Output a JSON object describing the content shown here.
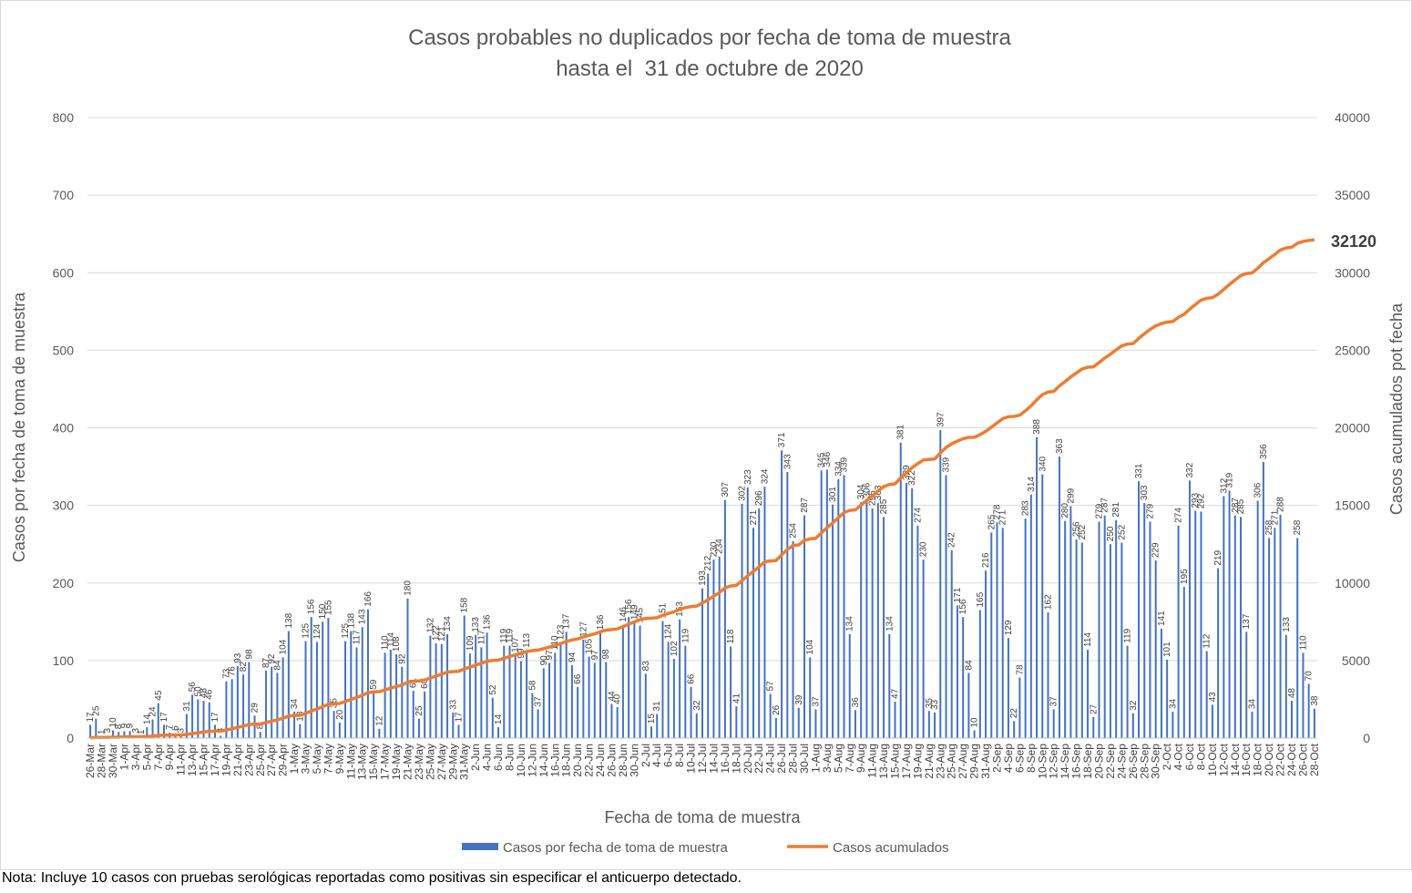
{
  "chart_data": {
    "type": "bar",
    "title": "Casos probables no duplicados por fecha de toma de muestra",
    "subtitle": "hasta el  31 de octubre de 2020",
    "xlabel": "Fecha de toma de muestra",
    "ylabel": "Casos por fecha de toma de muestra",
    "y2label": "Casos acumulados pot fecha",
    "ylim": [
      0,
      800
    ],
    "y2lim": [
      0,
      40000
    ],
    "yticks": [
      0,
      100,
      200,
      300,
      400,
      500,
      600,
      700,
      800
    ],
    "y2ticks": [
      0,
      5000,
      10000,
      15000,
      20000,
      25000,
      30000,
      35000,
      40000
    ],
    "grid": true,
    "legend_position": "bottom",
    "start_date": "2020-03-26",
    "end_date": "2020-10-31",
    "x_tick_labels": [
      "26-Mar",
      "28-Mar",
      "30-Mar",
      "1-Apr",
      "3-Apr",
      "5-Apr",
      "7-Apr",
      "9-Apr",
      "11-Apr",
      "13-Apr",
      "15-Apr",
      "17-Apr",
      "19-Apr",
      "21-Apr",
      "23-Apr",
      "25-Apr",
      "27-Apr",
      "29-Apr",
      "1-May",
      "3-May",
      "5-May",
      "7-May",
      "9-May",
      "11-May",
      "13-May",
      "15-May",
      "17-May",
      "19-May",
      "21-May",
      "23-May",
      "25-May",
      "27-May",
      "29-May",
      "31-May",
      "2-Jun",
      "4-Jun",
      "6-Jun",
      "8-Jun",
      "10-Jun",
      "12-Jun",
      "14-Jun",
      "16-Jun",
      "18-Jun",
      "20-Jun",
      "22-Jun",
      "24-Jun",
      "26-Jun",
      "28-Jun",
      "30-Jun",
      "2-Jul",
      "4-Jul",
      "6-Jul",
      "8-Jul",
      "10-Jul",
      "12-Jul",
      "14-Jul",
      "16-Jul",
      "18-Jul",
      "20-Jul",
      "22-Jul",
      "24-Jul",
      "26-Jul",
      "28-Jul",
      "30-Jul",
      "1-Aug",
      "3-Aug",
      "5-Aug",
      "7-Aug",
      "9-Aug",
      "11-Aug",
      "13-Aug",
      "15-Aug",
      "17-Aug",
      "19-Aug",
      "21-Aug",
      "23-Aug",
      "25-Aug",
      "27-Aug",
      "29-Aug",
      "31-Aug",
      "2-Sep",
      "4-Sep",
      "6-Sep",
      "8-Sep",
      "10-Sep",
      "12-Sep",
      "14-Sep",
      "16-Sep",
      "18-Sep",
      "20-Sep",
      "22-Sep",
      "24-Sep",
      "26-Sep",
      "28-Sep",
      "30-Sep",
      "2-Oct",
      "4-Oct",
      "6-Oct",
      "8-Oct",
      "10-Oct",
      "12-Oct",
      "14-Oct",
      "16-Oct",
      "18-Oct",
      "20-Oct",
      "22-Oct",
      "24-Oct",
      "26-Oct",
      "28-Oct"
    ],
    "series": [
      {
        "name": "Casos por fecha de toma de muestra",
        "axis": "left",
        "kind": "bar",
        "color": "#4472C4",
        "values": [
          17,
          25,
          1,
          3,
          10,
          8,
          9,
          9,
          3,
          1,
          14,
          24,
          45,
          17,
          7,
          6,
          3,
          31,
          56,
          50,
          48,
          46,
          17,
          3,
          73,
          76,
          93,
          82,
          98,
          29,
          8,
          87,
          92,
          84,
          104,
          138,
          34,
          18,
          125,
          156,
          124,
          150,
          155,
          35,
          20,
          125,
          138,
          117,
          143,
          166,
          59,
          12,
          110,
          114,
          108,
          92,
          180,
          61,
          25,
          60,
          132,
          122,
          121,
          134,
          33,
          17,
          158,
          109,
          133,
          117,
          136,
          52,
          14,
          119,
          119,
          107,
          99,
          113,
          58,
          37,
          90,
          97,
          110,
          123,
          137,
          94,
          66,
          127,
          105,
          97,
          136,
          98,
          44,
          40,
          146,
          156,
          149,
          145,
          83,
          15,
          31,
          151,
          124,
          102,
          153,
          119,
          66,
          32,
          193,
          212,
          230,
          234,
          307,
          118,
          41,
          302,
          323,
          271,
          296,
          324,
          57,
          26,
          371,
          343,
          254,
          39,
          287,
          104,
          37,
          345,
          346,
          301,
          334,
          339,
          134,
          36,
          304,
          306,
          296,
          303,
          285,
          134,
          47,
          381,
          329,
          322,
          274,
          230,
          35,
          33,
          397,
          339,
          242,
          171,
          156,
          84,
          10,
          165,
          216,
          265,
          278,
          271,
          129,
          22,
          78,
          283,
          314,
          388,
          340,
          162,
          37,
          363,
          280,
          299,
          256,
          252,
          114,
          27,
          279,
          287,
          250,
          281,
          252,
          119,
          32,
          331,
          303,
          279,
          229,
          141,
          101,
          34,
          274,
          195,
          332,
          293,
          292,
          112,
          43,
          219,
          312,
          319,
          287,
          285,
          137,
          34,
          306,
          356,
          258,
          271,
          288,
          133,
          48,
          258,
          110,
          70,
          38
        ]
      },
      {
        "name": "Casos acumulados",
        "axis": "right",
        "kind": "line",
        "color": "#ED7D31",
        "final_label": "32120"
      }
    ]
  },
  "note": "Nota: Incluye 10 casos con pruebas serológicas reportadas como positivas sin especificar el anticuerpo detectado."
}
